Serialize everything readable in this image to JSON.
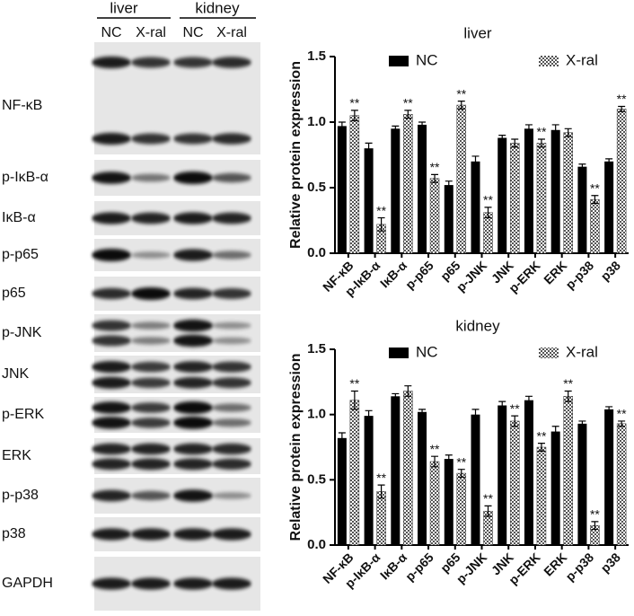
{
  "blot": {
    "groups": [
      "liver",
      "kidney"
    ],
    "lanes": [
      "NC",
      "X-ral",
      "NC",
      "X-ral"
    ],
    "rows": [
      "NF-κB",
      "p-IκB-α",
      "IκB-α",
      "p-p65",
      "p65",
      "p-JNK",
      "JNK",
      "p-ERK",
      "ERK",
      "p-p38",
      "p38",
      "GAPDH"
    ]
  },
  "chart_data": [
    {
      "type": "bar",
      "title": "liver",
      "y_label": "Relative protein expression",
      "categories": [
        "NF-κB",
        "p-IκB-α",
        "IκB-α",
        "p-p65",
        "p65",
        "p-JNK",
        "JNK",
        "p-ERK",
        "ERK",
        "p-p38",
        "p38"
      ],
      "series": [
        {
          "name": "NC",
          "color": "#000000",
          "values": [
            0.97,
            0.8,
            0.95,
            0.98,
            0.52,
            0.7,
            0.88,
            0.95,
            0.94,
            0.66,
            0.7
          ],
          "errors": [
            0.03,
            0.04,
            0.02,
            0.02,
            0.03,
            0.04,
            0.02,
            0.03,
            0.04,
            0.02,
            0.02
          ],
          "significance": [
            null,
            null,
            null,
            null,
            null,
            null,
            null,
            null,
            null,
            null,
            null
          ]
        },
        {
          "name": "X-ral",
          "color": "#777777",
          "pattern": "checker",
          "values": [
            1.05,
            0.22,
            1.06,
            0.57,
            1.13,
            0.31,
            0.84,
            0.84,
            0.92,
            0.41,
            1.1
          ],
          "errors": [
            0.04,
            0.05,
            0.03,
            0.03,
            0.03,
            0.04,
            0.03,
            0.03,
            0.03,
            0.03,
            0.02
          ],
          "significance": [
            "**",
            "**",
            "**",
            "**",
            "**",
            "**",
            null,
            "**",
            null,
            "**",
            "**"
          ]
        }
      ],
      "ylim": [
        0,
        1.5
      ],
      "yticks": [
        {
          "value": 0,
          "label": "0.0"
        },
        0.5,
        {
          "value": 1,
          "label": "1.0"
        },
        1.5
      ]
    },
    {
      "type": "bar",
      "title": "kidney",
      "y_label": "Relative protein expression",
      "categories": [
        "NF-κB",
        "p-IκB-α",
        "IκB-α",
        "p-p65",
        "p65",
        "p-JNK",
        "JNK",
        "p-ERK",
        "ERK",
        "p-p38",
        "p38"
      ],
      "series": [
        {
          "name": "NC",
          "color": "#000000",
          "values": [
            0.82,
            0.99,
            1.14,
            1.02,
            0.66,
            1.0,
            1.07,
            1.11,
            0.87,
            0.93,
            1.04
          ],
          "errors": [
            0.04,
            0.04,
            0.02,
            0.02,
            0.03,
            0.04,
            0.03,
            0.03,
            0.04,
            0.02,
            0.02
          ],
          "significance": [
            null,
            null,
            null,
            null,
            null,
            null,
            null,
            null,
            null,
            null,
            null
          ]
        },
        {
          "name": "X-ral",
          "color": "#777777",
          "pattern": "checker",
          "values": [
            1.11,
            0.41,
            1.18,
            0.64,
            0.55,
            0.26,
            0.95,
            0.75,
            1.14,
            0.15,
            0.93
          ],
          "errors": [
            0.07,
            0.05,
            0.04,
            0.04,
            0.03,
            0.04,
            0.04,
            0.03,
            0.04,
            0.03,
            0.02
          ],
          "significance": [
            "**",
            "**",
            null,
            "**",
            "**",
            "**",
            "**",
            "**",
            "**",
            "**",
            "**"
          ]
        }
      ],
      "ylim": [
        0,
        1.5
      ],
      "yticks": [
        {
          "value": 0,
          "label": "0.0"
        },
        0.5,
        {
          "value": 1,
          "label": "1.0"
        },
        1.5
      ]
    }
  ]
}
